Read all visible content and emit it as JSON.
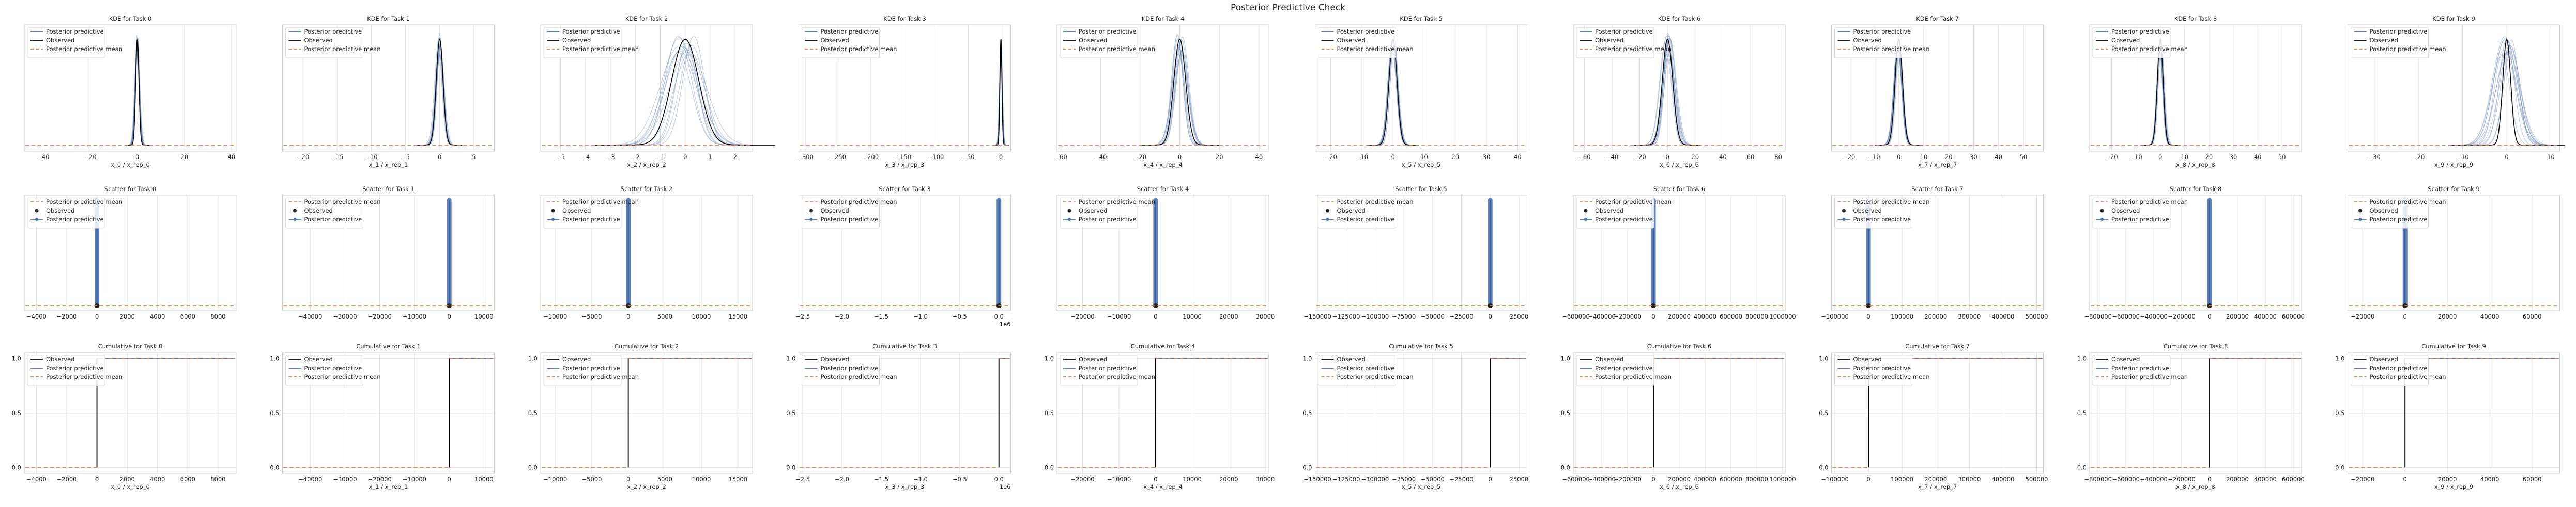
{
  "suptitle": "Posterior Predictive Check",
  "rows": [
    {
      "kind": "kde",
      "title_prefix": "KDE for Task ",
      "legend": [
        "Posterior predictive",
        "Observed",
        "Posterior predictive mean"
      ]
    },
    {
      "kind": "scatter",
      "title_prefix": "Scatter for Task ",
      "legend": [
        "Posterior predictive mean",
        "Observed",
        "Posterior predictive"
      ]
    },
    {
      "kind": "cumulative",
      "title_prefix": "Cumulative for Task ",
      "legend": [
        "Observed",
        "Posterior predictive",
        "Posterior predictive mean"
      ]
    }
  ],
  "colors": {
    "posterior_predictive": "#4c72b0",
    "observed": "#000000",
    "posterior_mean": "#dd8452",
    "scatter_observed": "#222222",
    "grid": "#e0e0e0",
    "spine": "#cccccc"
  },
  "chart_data": [
    {
      "type": "line",
      "task": 0,
      "xlabel": "x_0 / x_rep_0",
      "kde": {
        "xlim": [
          -48,
          42
        ],
        "xticks": [
          -40,
          -20,
          0,
          20,
          40
        ],
        "tick_labels": [
          "−40",
          "−20",
          "0",
          "20",
          "40"
        ],
        "observed_center": 0,
        "observed_width": 0.7,
        "pp_width": 0.9,
        "pp_spread": 0.12,
        "mean_level": 0.02
      },
      "scatter": {
        "xlim": [
          -4800,
          9200
        ],
        "xticks": [
          -4000,
          -2000,
          0,
          2000,
          4000,
          6000,
          8000
        ],
        "tick_labels": [
          "−4000",
          "−2000",
          "0",
          "2000",
          "4000",
          "6000",
          "8000"
        ],
        "observed_x": 0,
        "offset_label": ""
      },
      "cumulative": {
        "xlim": [
          -4800,
          9200
        ],
        "xticks": [
          -4000,
          -2000,
          0,
          2000,
          4000,
          6000,
          8000
        ],
        "tick_labels": [
          "−4000",
          "−2000",
          "0",
          "2000",
          "4000",
          "6000",
          "8000"
        ],
        "yticks": [
          0.0,
          0.5,
          1.0
        ],
        "ytick_labels": [
          "0.0",
          "0.5",
          "1.0"
        ],
        "step_x": 0,
        "offset_label": ""
      }
    },
    {
      "type": "line",
      "task": 1,
      "xlabel": "x_1 / x_rep_1",
      "kde": {
        "xlim": [
          -23,
          8
        ],
        "xticks": [
          -20,
          -15,
          -10,
          -5,
          0,
          5
        ],
        "tick_labels": [
          "−20",
          "−15",
          "−10",
          "−5",
          "0",
          "5"
        ],
        "observed_center": 0,
        "observed_width": 0.5,
        "pp_width": 0.55,
        "pp_spread": 0.15,
        "mean_level": 0.02
      },
      "scatter": {
        "xlim": [
          -48000,
          13000
        ],
        "xticks": [
          -40000,
          -30000,
          -20000,
          -10000,
          0,
          10000
        ],
        "tick_labels": [
          "−40000",
          "−30000",
          "−20000",
          "−10000",
          "0",
          "10000"
        ],
        "observed_x": 0,
        "offset_label": ""
      },
      "cumulative": {
        "xlim": [
          -48000,
          13000
        ],
        "xticks": [
          -40000,
          -30000,
          -20000,
          -10000,
          0,
          10000
        ],
        "tick_labels": [
          "−40000",
          "−30000",
          "−20000",
          "−10000",
          "0",
          "10000"
        ],
        "yticks": [
          0.0,
          0.5,
          1.0
        ],
        "ytick_labels": [
          "0.0",
          "0.5",
          "1.0"
        ],
        "step_x": 0,
        "offset_label": ""
      }
    },
    {
      "type": "line",
      "task": 2,
      "xlabel": "x_2 / x_rep_2",
      "kde": {
        "xlim": [
          -5.8,
          2.7
        ],
        "xticks": [
          -5,
          -4,
          -3,
          -2,
          -1,
          0,
          1,
          2
        ],
        "tick_labels": [
          "−5",
          "−4",
          "−3",
          "−2",
          "−1",
          "0",
          "1",
          "2"
        ],
        "observed_center": 0,
        "observed_width": 0.55,
        "pp_width": 0.6,
        "pp_spread": 0.3,
        "mean_level": 0.02
      },
      "scatter": {
        "xlim": [
          -12000,
          17000
        ],
        "xticks": [
          -10000,
          -5000,
          0,
          5000,
          10000,
          15000
        ],
        "tick_labels": [
          "−10000",
          "−5000",
          "0",
          "5000",
          "10000",
          "15000"
        ],
        "observed_x": 0,
        "offset_label": ""
      },
      "cumulative": {
        "xlim": [
          -12000,
          17000
        ],
        "xticks": [
          -10000,
          -5000,
          0,
          5000,
          10000,
          15000
        ],
        "tick_labels": [
          "−10000",
          "−5000",
          "0",
          "5000",
          "10000",
          "15000"
        ],
        "yticks": [
          0.0,
          0.5,
          1.0
        ],
        "ytick_labels": [
          "0.0",
          "0.5",
          "1.0"
        ],
        "step_x": 0,
        "offset_label": ""
      }
    },
    {
      "type": "line",
      "task": 3,
      "xlabel": "x_3 / x_rep_3",
      "kde": {
        "xlim": [
          -310,
          15
        ],
        "xticks": [
          -300,
          -250,
          -200,
          -150,
          -100,
          -50,
          0
        ],
        "tick_labels": [
          "−300",
          "−250",
          "−200",
          "−150",
          "−100",
          "−50",
          "0"
        ],
        "observed_center": 0,
        "observed_width": 1.5,
        "pp_width": 2.0,
        "pp_spread": 0.1,
        "mean_level": 0.02
      },
      "scatter": {
        "xlim": [
          -2.55,
          0.15
        ],
        "xticks": [
          -2.5,
          -2.0,
          -1.5,
          -1.0,
          -0.5,
          0.0
        ],
        "tick_labels": [
          "−2.5",
          "−2.0",
          "−1.5",
          "−1.0",
          "−0.5",
          "0.0"
        ],
        "observed_x": 0,
        "offset_label": "1e6"
      },
      "cumulative": {
        "xlim": [
          -2.55,
          0.15
        ],
        "xticks": [
          -2.5,
          -2.0,
          -1.5,
          -1.0,
          -0.5,
          0.0
        ],
        "tick_labels": [
          "−2.5",
          "−2.0",
          "−1.5",
          "−1.0",
          "−0.5",
          "0.0"
        ],
        "yticks": [
          0.0,
          0.5,
          1.0
        ],
        "ytick_labels": [
          "0.0",
          "0.5",
          "1.0"
        ],
        "step_x": 0,
        "offset_label": "1e6"
      }
    },
    {
      "type": "line",
      "task": 4,
      "xlabel": "x_4 / x_rep_4",
      "kde": {
        "xlim": [
          -62,
          45
        ],
        "xticks": [
          -60,
          -40,
          -20,
          0,
          20,
          40
        ],
        "tick_labels": [
          "−60",
          "−40",
          "−20",
          "0",
          "20",
          "40"
        ],
        "observed_center": 0,
        "observed_width": 3.0,
        "pp_width": 3.3,
        "pp_spread": 0.2,
        "mean_level": 0.02
      },
      "scatter": {
        "xlim": [
          -27000,
          31000
        ],
        "xticks": [
          -20000,
          -10000,
          0,
          10000,
          20000,
          30000
        ],
        "tick_labels": [
          "−20000",
          "−10000",
          "0",
          "10000",
          "20000",
          "30000"
        ],
        "observed_x": 0,
        "offset_label": ""
      },
      "cumulative": {
        "xlim": [
          -27000,
          31000
        ],
        "xticks": [
          -20000,
          -10000,
          0,
          10000,
          20000,
          30000
        ],
        "tick_labels": [
          "−20000",
          "−10000",
          "0",
          "10000",
          "20000",
          "30000"
        ],
        "yticks": [
          0.0,
          0.5,
          1.0
        ],
        "ytick_labels": [
          "0.0",
          "0.5",
          "1.0"
        ],
        "step_x": 0,
        "offset_label": ""
      }
    },
    {
      "type": "line",
      "task": 5,
      "xlabel": "x_5 / x_rep_5",
      "kde": {
        "xlim": [
          -25,
          43
        ],
        "xticks": [
          -20,
          -10,
          0,
          10,
          20,
          30,
          40
        ],
        "tick_labels": [
          "−20",
          "−10",
          "0",
          "10",
          "20",
          "30",
          "40"
        ],
        "observed_center": 0,
        "observed_width": 1.3,
        "pp_width": 1.4,
        "pp_spread": 0.15,
        "mean_level": 0.02
      },
      "scatter": {
        "xlim": [
          -152000,
          32000
        ],
        "xticks": [
          -150000,
          -125000,
          -100000,
          -75000,
          -50000,
          -25000,
          0,
          25000
        ],
        "tick_labels": [
          "−150000",
          "−125000",
          "−100000",
          "−75000",
          "−50000",
          "−25000",
          "0",
          "25000"
        ],
        "observed_x": 0,
        "offset_label": ""
      },
      "cumulative": {
        "xlim": [
          -152000,
          32000
        ],
        "xticks": [
          -150000,
          -125000,
          -100000,
          -75000,
          -50000,
          -25000,
          0,
          25000
        ],
        "tick_labels": [
          "−150000",
          "−125000",
          "−100000",
          "−75000",
          "−50000",
          "−25000",
          "0",
          "25000"
        ],
        "yticks": [
          0.0,
          0.5,
          1.0
        ],
        "ytick_labels": [
          "0.0",
          "0.5",
          "1.0"
        ],
        "step_x": 0,
        "offset_label": ""
      }
    },
    {
      "type": "line",
      "task": 6,
      "xlabel": "x_6 / x_rep_6",
      "kde": {
        "xlim": [
          -68,
          85
        ],
        "xticks": [
          -60,
          -40,
          -20,
          0,
          20,
          40,
          60,
          80
        ],
        "tick_labels": [
          "−60",
          "−40",
          "−20",
          "0",
          "20",
          "40",
          "60",
          "80"
        ],
        "observed_center": 0,
        "observed_width": 3.8,
        "pp_width": 4.0,
        "pp_spread": 0.22,
        "mean_level": 0.02
      },
      "scatter": {
        "xlim": [
          -620000,
          1020000
        ],
        "xticks": [
          -600000,
          -400000,
          -200000,
          0,
          200000,
          400000,
          600000,
          800000,
          1000000
        ],
        "tick_labels": [
          "−600000",
          "−400000",
          "−200000",
          "0",
          "200000",
          "400000",
          "600000",
          "800000",
          "1000000"
        ],
        "observed_x": 0,
        "offset_label": ""
      },
      "cumulative": {
        "xlim": [
          -620000,
          1020000
        ],
        "xticks": [
          -600000,
          -400000,
          -200000,
          0,
          200000,
          400000,
          600000,
          800000,
          1000000
        ],
        "tick_labels": [
          "−600000",
          "−400000",
          "−200000",
          "0",
          "200000",
          "400000",
          "600000",
          "800000",
          "1000000"
        ],
        "yticks": [
          0.0,
          0.5,
          1.0
        ],
        "ytick_labels": [
          "0.0",
          "0.5",
          "1.0"
        ],
        "step_x": 0,
        "offset_label": ""
      }
    },
    {
      "type": "line",
      "task": 7,
      "xlabel": "x_7 / x_rep_7",
      "kde": {
        "xlim": [
          -27,
          58
        ],
        "xticks": [
          -20,
          -10,
          0,
          10,
          20,
          30,
          40,
          50
        ],
        "tick_labels": [
          "−20",
          "−10",
          "0",
          "10",
          "20",
          "30",
          "40",
          "50"
        ],
        "observed_center": 0,
        "observed_width": 1.5,
        "pp_width": 1.6,
        "pp_spread": 0.15,
        "mean_level": 0.02
      },
      "scatter": {
        "xlim": [
          -110000,
          520000
        ],
        "xticks": [
          -100000,
          0,
          100000,
          200000,
          300000,
          400000,
          500000
        ],
        "tick_labels": [
          "−100000",
          "0",
          "100000",
          "200000",
          "300000",
          "400000",
          "500000"
        ],
        "observed_x": 0,
        "offset_label": ""
      },
      "cumulative": {
        "xlim": [
          -110000,
          520000
        ],
        "xticks": [
          -100000,
          0,
          100000,
          200000,
          300000,
          400000,
          500000
        ],
        "tick_labels": [
          "−100000",
          "0",
          "100000",
          "200000",
          "300000",
          "400000",
          "500000"
        ],
        "yticks": [
          0.0,
          0.5,
          1.0
        ],
        "ytick_labels": [
          "0.0",
          "0.5",
          "1.0"
        ],
        "step_x": 0,
        "offset_label": ""
      }
    },
    {
      "type": "line",
      "task": 8,
      "xlabel": "x_8 / x_rep_8",
      "kde": {
        "xlim": [
          -29,
          58
        ],
        "xticks": [
          -20,
          -10,
          0,
          10,
          20,
          30,
          40,
          50
        ],
        "tick_labels": [
          "−20",
          "−10",
          "0",
          "10",
          "20",
          "30",
          "40",
          "50"
        ],
        "observed_center": 0,
        "observed_width": 1.2,
        "pp_width": 1.3,
        "pp_spread": 0.15,
        "mean_level": 0.02
      },
      "scatter": {
        "xlim": [
          -860000,
          660000
        ],
        "xticks": [
          -800000,
          -600000,
          -400000,
          -200000,
          0,
          200000,
          400000,
          600000
        ],
        "tick_labels": [
          "−800000",
          "−600000",
          "−400000",
          "−200000",
          "0",
          "200000",
          "400000",
          "600000"
        ],
        "observed_x": 0,
        "offset_label": ""
      },
      "cumulative": {
        "xlim": [
          -860000,
          660000
        ],
        "xticks": [
          -800000,
          -600000,
          -400000,
          -200000,
          0,
          200000,
          400000,
          600000
        ],
        "tick_labels": [
          "−800000",
          "−600000",
          "−400000",
          "−200000",
          "0",
          "200000",
          "400000",
          "600000"
        ],
        "yticks": [
          0.0,
          0.5,
          1.0
        ],
        "ytick_labels": [
          "0.0",
          "0.5",
          "1.0"
        ],
        "step_x": 0,
        "offset_label": ""
      }
    },
    {
      "type": "line",
      "task": 9,
      "xlabel": "x_9 / x_rep_9",
      "kde": {
        "xlim": [
          -36,
          12
        ],
        "xticks": [
          -30,
          -20,
          -10,
          0,
          10
        ],
        "tick_labels": [
          "−30",
          "−20",
          "−10",
          "0",
          "10"
        ],
        "observed_center": 0,
        "observed_width": 0.9,
        "pp_width": 2.2,
        "pp_spread": 0.25,
        "mean_level": 0.02
      },
      "scatter": {
        "xlim": [
          -27000,
          73000
        ],
        "xticks": [
          -20000,
          0,
          20000,
          40000,
          60000
        ],
        "tick_labels": [
          "−20000",
          "0",
          "20000",
          "40000",
          "60000"
        ],
        "observed_x": 0,
        "offset_label": ""
      },
      "cumulative": {
        "xlim": [
          -27000,
          73000
        ],
        "xticks": [
          -20000,
          0,
          20000,
          40000,
          60000
        ],
        "tick_labels": [
          "−20000",
          "0",
          "20000",
          "40000",
          "60000"
        ],
        "yticks": [
          0.0,
          0.5,
          1.0
        ],
        "ytick_labels": [
          "0.0",
          "0.5",
          "1.0"
        ],
        "step_x": 0,
        "offset_label": ""
      }
    }
  ]
}
